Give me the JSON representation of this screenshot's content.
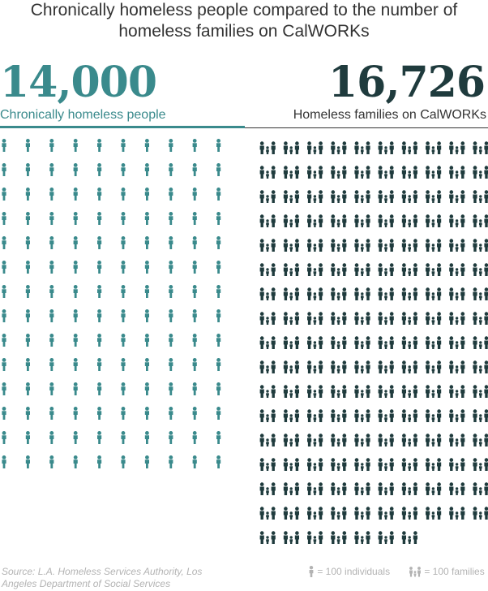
{
  "header": {
    "title_line1": "Chronically homeless people compared to the number of",
    "title_line2": "homeless families on CalWORKs"
  },
  "left_panel": {
    "big_number": "14,000",
    "label": "Chronically homeless people"
  },
  "right_panel": {
    "big_number": "16,726",
    "label": "Homeless families on CalWORKs"
  },
  "colors": {
    "individuals": "#3a8a8c",
    "families": "#1f3b3d",
    "text": "#333333",
    "muted": "#b3b3b3"
  },
  "chart_data": {
    "type": "pictogram",
    "title": "Chronically homeless people compared to the number of homeless families on CalWORKs",
    "series": [
      {
        "name": "Chronically homeless people",
        "value": 14000,
        "unit_value": 100,
        "icons": 140,
        "icon": "person-icon",
        "color": "#3a8a8c",
        "icons_per_row": 10
      },
      {
        "name": "Homeless families on CalWORKs",
        "value": 16726,
        "unit_value": 100,
        "icons": 167,
        "icon": "family-icon",
        "color": "#1f3b3d",
        "icons_per_row": 10
      }
    ]
  },
  "footer": {
    "source": "Source: L.A. Homeless Services Authority, Los Angeles Department of Social Services",
    "legend_individuals": "= 100 individuals",
    "legend_families": "= 100 families"
  }
}
